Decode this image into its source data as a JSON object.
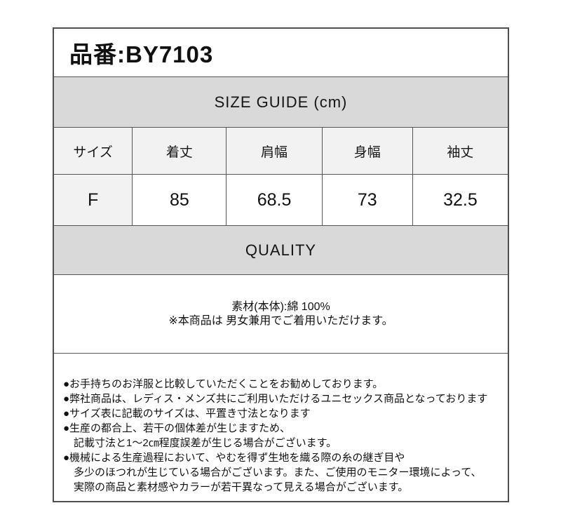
{
  "product": {
    "code_label": "品番:BY7103"
  },
  "size_guide": {
    "title": "SIZE GUIDE (cm)",
    "columns": [
      "サイズ",
      "着丈",
      "肩幅",
      "身幅",
      "袖丈"
    ],
    "row": [
      "F",
      "85",
      "68.5",
      "73",
      "32.5"
    ]
  },
  "quality": {
    "title": "QUALITY",
    "material_line": "素材(本体):綿 100%",
    "unisex_line": "※本商品は 男女兼用でご着用いただけます。"
  },
  "notes": {
    "lines": [
      "●お手持ちのお洋服と比較していただくことをお勧めしております。",
      "●弊社商品は、レディス・メンズ共にご利用いただけるユニセックス商品となっております",
      "●サイズ表に記載のサイズは、平置き寸法となります",
      "●生産の都合上、若干の個体差が生じますため、",
      "　記載寸法と1～2㎝程度誤差が生じる場合がございます。",
      "●機械による生産過程において、やむを得ず生地を織る際の糸の継ぎ目や",
      "　多少のほつれが生じている場合がございます。また、ご使用のモニター環境によって、",
      "　実際の商品と素材感やカラーが若干異なって見える場合がございます。"
    ]
  },
  "colors": {
    "band_gray": "#d9d9d9",
    "cell_gray": "#f2f2f2",
    "border_dark": "#4f4f4f",
    "border_inner": "#555555",
    "text": "#111111",
    "background": "#ffffff"
  }
}
